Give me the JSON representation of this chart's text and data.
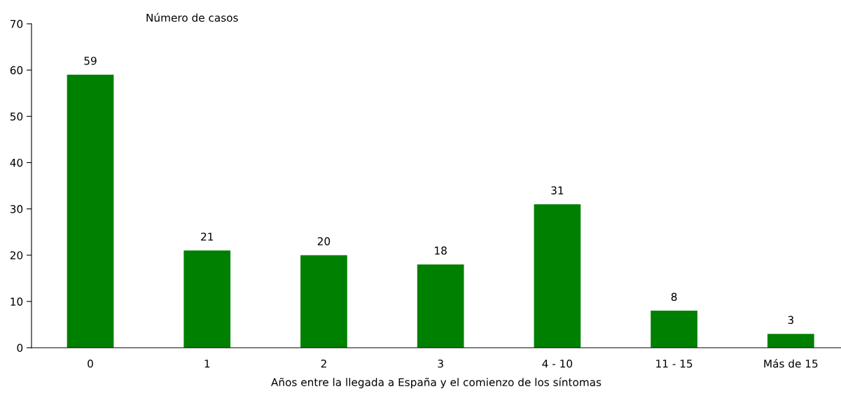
{
  "chart_data": {
    "type": "bar",
    "ylabel": "Número de casos",
    "xlabel": "Años entre la llegada a España y el comienzo de los síntomas",
    "categories": [
      "0",
      "1",
      "2",
      "3",
      "4 - 10",
      "11 - 15",
      "Más de 15"
    ],
    "values": [
      59,
      21,
      20,
      18,
      31,
      8,
      3
    ],
    "color": "#008000",
    "ylim": [
      0,
      70
    ],
    "yticks": [
      0,
      10,
      20,
      30,
      40,
      50,
      60,
      70
    ],
    "data_labels": true,
    "grid": false,
    "legend": false
  }
}
